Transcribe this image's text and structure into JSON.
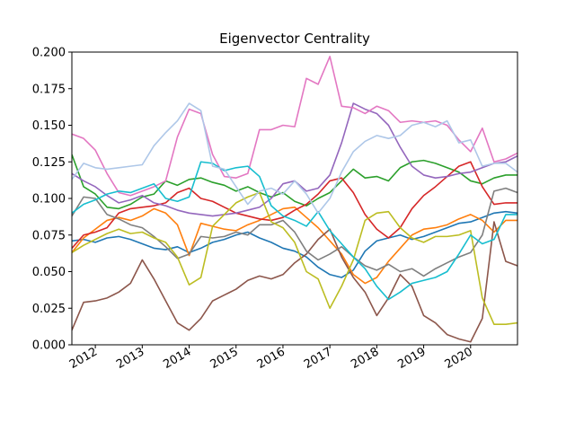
{
  "chart_data": {
    "type": "line",
    "title": "Eigenvector Centrality",
    "xlabel": "",
    "ylabel": "",
    "ylim": [
      0.0,
      0.2
    ],
    "xlim": [
      "2011-07",
      "2021-01"
    ],
    "x_tick_labels": [
      "2012",
      "2013",
      "2014",
      "2015",
      "2016",
      "2017",
      "2018",
      "2019",
      "2020"
    ],
    "y_tick_labels": [
      "0.000",
      "0.025",
      "0.050",
      "0.075",
      "0.100",
      "0.125",
      "0.150",
      "0.175",
      "0.200"
    ],
    "legend": "none",
    "grid": false,
    "x": [
      "2011-07",
      "2011-10",
      "2012-01",
      "2012-04",
      "2012-07",
      "2012-10",
      "2013-01",
      "2013-04",
      "2013-07",
      "2013-10",
      "2014-01",
      "2014-04",
      "2014-07",
      "2014-10",
      "2015-01",
      "2015-04",
      "2015-07",
      "2015-10",
      "2016-01",
      "2016-04",
      "2016-07",
      "2016-10",
      "2017-01",
      "2017-04",
      "2017-07",
      "2017-10",
      "2018-01",
      "2018-04",
      "2018-07",
      "2018-10",
      "2019-01",
      "2019-04",
      "2019-07",
      "2019-10",
      "2020-01",
      "2020-04",
      "2020-07",
      "2020-10",
      "2021-01"
    ],
    "series": [
      {
        "color": "#1f77b4",
        "values": [
          0.071,
          0.072,
          0.07,
          0.073,
          0.074,
          0.072,
          0.069,
          0.066,
          0.065,
          0.067,
          0.063,
          0.066,
          0.07,
          0.072,
          0.075,
          0.077,
          0.073,
          0.07,
          0.066,
          0.064,
          0.06,
          0.053,
          0.048,
          0.046,
          0.051,
          0.064,
          0.071,
          0.073,
          0.075,
          0.072,
          0.074,
          0.077,
          0.08,
          0.083,
          0.084,
          0.087,
          0.09,
          0.091,
          0.09
        ]
      },
      {
        "color": "#ff7f0e",
        "values": [
          0.063,
          0.073,
          0.079,
          0.085,
          0.087,
          0.085,
          0.088,
          0.093,
          0.09,
          0.082,
          0.061,
          0.083,
          0.081,
          0.079,
          0.078,
          0.082,
          0.085,
          0.089,
          0.093,
          0.094,
          0.087,
          0.08,
          0.071,
          0.062,
          0.048,
          0.042,
          0.046,
          0.057,
          0.066,
          0.075,
          0.079,
          0.08,
          0.082,
          0.086,
          0.089,
          0.085,
          0.077,
          0.085,
          0.085
        ]
      },
      {
        "color": "#2ca02c",
        "values": [
          0.13,
          0.108,
          0.103,
          0.094,
          0.093,
          0.096,
          0.101,
          0.103,
          0.112,
          0.109,
          0.113,
          0.114,
          0.111,
          0.109,
          0.105,
          0.108,
          0.104,
          0.101,
          0.104,
          0.098,
          0.095,
          0.1,
          0.104,
          0.112,
          0.12,
          0.114,
          0.115,
          0.112,
          0.121,
          0.125,
          0.126,
          0.124,
          0.121,
          0.118,
          0.112,
          0.11,
          0.114,
          0.116,
          0.116
        ]
      },
      {
        "color": "#d62728",
        "values": [
          0.066,
          0.075,
          0.077,
          0.08,
          0.09,
          0.093,
          0.094,
          0.095,
          0.097,
          0.104,
          0.107,
          0.1,
          0.098,
          0.094,
          0.09,
          0.088,
          0.086,
          0.085,
          0.087,
          0.092,
          0.096,
          0.103,
          0.112,
          0.114,
          0.104,
          0.089,
          0.079,
          0.073,
          0.08,
          0.093,
          0.102,
          0.108,
          0.115,
          0.122,
          0.125,
          0.108,
          0.096,
          0.097,
          0.097
        ]
      },
      {
        "color": "#9467bd",
        "values": [
          0.117,
          0.112,
          0.108,
          0.102,
          0.097,
          0.099,
          0.102,
          0.097,
          0.095,
          0.092,
          0.09,
          0.089,
          0.088,
          0.089,
          0.09,
          0.092,
          0.094,
          0.1,
          0.11,
          0.112,
          0.105,
          0.107,
          0.116,
          0.138,
          0.165,
          0.161,
          0.158,
          0.15,
          0.135,
          0.122,
          0.116,
          0.114,
          0.115,
          0.117,
          0.118,
          0.121,
          0.124,
          0.125,
          0.129
        ]
      },
      {
        "color": "#8c564b",
        "values": [
          0.01,
          0.029,
          0.03,
          0.032,
          0.036,
          0.042,
          0.058,
          0.045,
          0.03,
          0.015,
          0.01,
          0.018,
          0.03,
          0.034,
          0.038,
          0.044,
          0.047,
          0.045,
          0.048,
          0.056,
          0.062,
          0.072,
          0.079,
          0.06,
          0.046,
          0.036,
          0.02,
          0.032,
          0.048,
          0.04,
          0.02,
          0.015,
          0.007,
          0.004,
          0.002,
          0.018,
          0.084,
          0.057,
          0.054
        ]
      },
      {
        "color": "#e377c2",
        "values": [
          0.144,
          0.141,
          0.133,
          0.117,
          0.104,
          0.102,
          0.105,
          0.108,
          0.112,
          0.142,
          0.161,
          0.158,
          0.13,
          0.115,
          0.114,
          0.117,
          0.147,
          0.147,
          0.15,
          0.149,
          0.182,
          0.178,
          0.197,
          0.163,
          0.162,
          0.158,
          0.163,
          0.16,
          0.152,
          0.153,
          0.152,
          0.153,
          0.15,
          0.14,
          0.132,
          0.148,
          0.125,
          0.127,
          0.131
        ]
      },
      {
        "color": "#7f7f7f",
        "values": [
          0.088,
          0.101,
          0.1,
          0.089,
          0.086,
          0.082,
          0.08,
          0.074,
          0.067,
          0.059,
          0.062,
          0.074,
          0.073,
          0.074,
          0.077,
          0.075,
          0.082,
          0.082,
          0.085,
          0.077,
          0.064,
          0.058,
          0.062,
          0.067,
          0.06,
          0.054,
          0.051,
          0.055,
          0.05,
          0.052,
          0.047,
          0.052,
          0.056,
          0.06,
          0.063,
          0.075,
          0.105,
          0.107,
          0.104
        ]
      },
      {
        "color": "#bcbd22",
        "values": [
          0.063,
          0.068,
          0.072,
          0.076,
          0.079,
          0.076,
          0.077,
          0.073,
          0.07,
          0.06,
          0.041,
          0.046,
          0.081,
          0.089,
          0.097,
          0.101,
          0.104,
          0.084,
          0.08,
          0.07,
          0.05,
          0.045,
          0.025,
          0.04,
          0.058,
          0.085,
          0.09,
          0.091,
          0.08,
          0.073,
          0.07,
          0.074,
          0.074,
          0.075,
          0.078,
          0.032,
          0.014,
          0.014,
          0.015
        ]
      },
      {
        "color": "#17becf",
        "values": [
          0.09,
          0.096,
          0.099,
          0.103,
          0.105,
          0.104,
          0.107,
          0.11,
          0.1,
          0.098,
          0.101,
          0.125,
          0.124,
          0.119,
          0.121,
          0.122,
          0.115,
          0.095,
          0.088,
          0.085,
          0.081,
          0.091,
          0.078,
          0.069,
          0.06,
          0.052,
          0.04,
          0.031,
          0.036,
          0.042,
          0.044,
          0.046,
          0.05,
          0.062,
          0.075,
          0.069,
          0.072,
          0.089,
          0.089
        ]
      },
      {
        "color": "#aec7e8",
        "values": [
          0.113,
          0.124,
          0.121,
          0.12,
          0.121,
          0.122,
          0.123,
          0.136,
          0.145,
          0.153,
          0.165,
          0.16,
          0.122,
          0.12,
          0.108,
          0.096,
          0.105,
          0.107,
          0.103,
          0.112,
          0.103,
          0.09,
          0.1,
          0.118,
          0.132,
          0.139,
          0.143,
          0.141,
          0.143,
          0.15,
          0.152,
          0.149,
          0.153,
          0.138,
          0.14,
          0.122,
          0.124,
          0.124,
          0.118
        ]
      }
    ]
  }
}
